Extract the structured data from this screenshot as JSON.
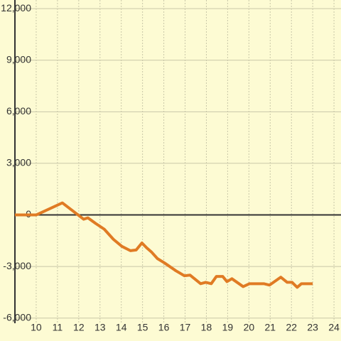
{
  "chart_data": {
    "type": "line",
    "x": [
      9,
      10,
      11.23,
      11.97,
      12.23,
      12.43,
      12.8,
      13.2,
      13.63,
      14.03,
      14.43,
      14.7,
      14.97,
      15.2,
      15.43,
      15.7,
      16.03,
      16.57,
      16.97,
      17.23,
      17.73,
      17.97,
      18.23,
      18.47,
      18.77,
      18.97,
      19.2,
      19.73,
      20.03,
      20.7,
      20.97,
      21.5,
      21.8,
      22.03,
      22.27,
      22.47,
      23.0
    ],
    "series": [
      {
        "color": "#e07b24",
        "values": [
          0,
          0,
          700,
          0,
          -250,
          -170,
          -500,
          -830,
          -1420,
          -1830,
          -2080,
          -2040,
          -1630,
          -1920,
          -2170,
          -2540,
          -2790,
          -3250,
          -3540,
          -3500,
          -4000,
          -3920,
          -4000,
          -3580,
          -3580,
          -3880,
          -3710,
          -4170,
          -4000,
          -4000,
          -4080,
          -3620,
          -3920,
          -3920,
          -4210,
          -4000,
          -4000
        ]
      }
    ],
    "xlim": [
      9,
      24.33
    ],
    "xticks": [
      10,
      11,
      12,
      13,
      14,
      15,
      16,
      17,
      18,
      19,
      20,
      21,
      22,
      23,
      24
    ],
    "ylim": [
      -6300,
      12500
    ],
    "yticks": [
      {
        "value": -6000,
        "label": "-6,000"
      },
      {
        "value": -3000,
        "label": "-3,000"
      },
      0,
      {
        "value": 3000,
        "label": "3,000"
      },
      {
        "value": 6000,
        "label": "6,000"
      },
      {
        "value": 9000,
        "label": "9,000"
      },
      {
        "value": 12000,
        "label": "12,000"
      }
    ],
    "grid": true
  }
}
